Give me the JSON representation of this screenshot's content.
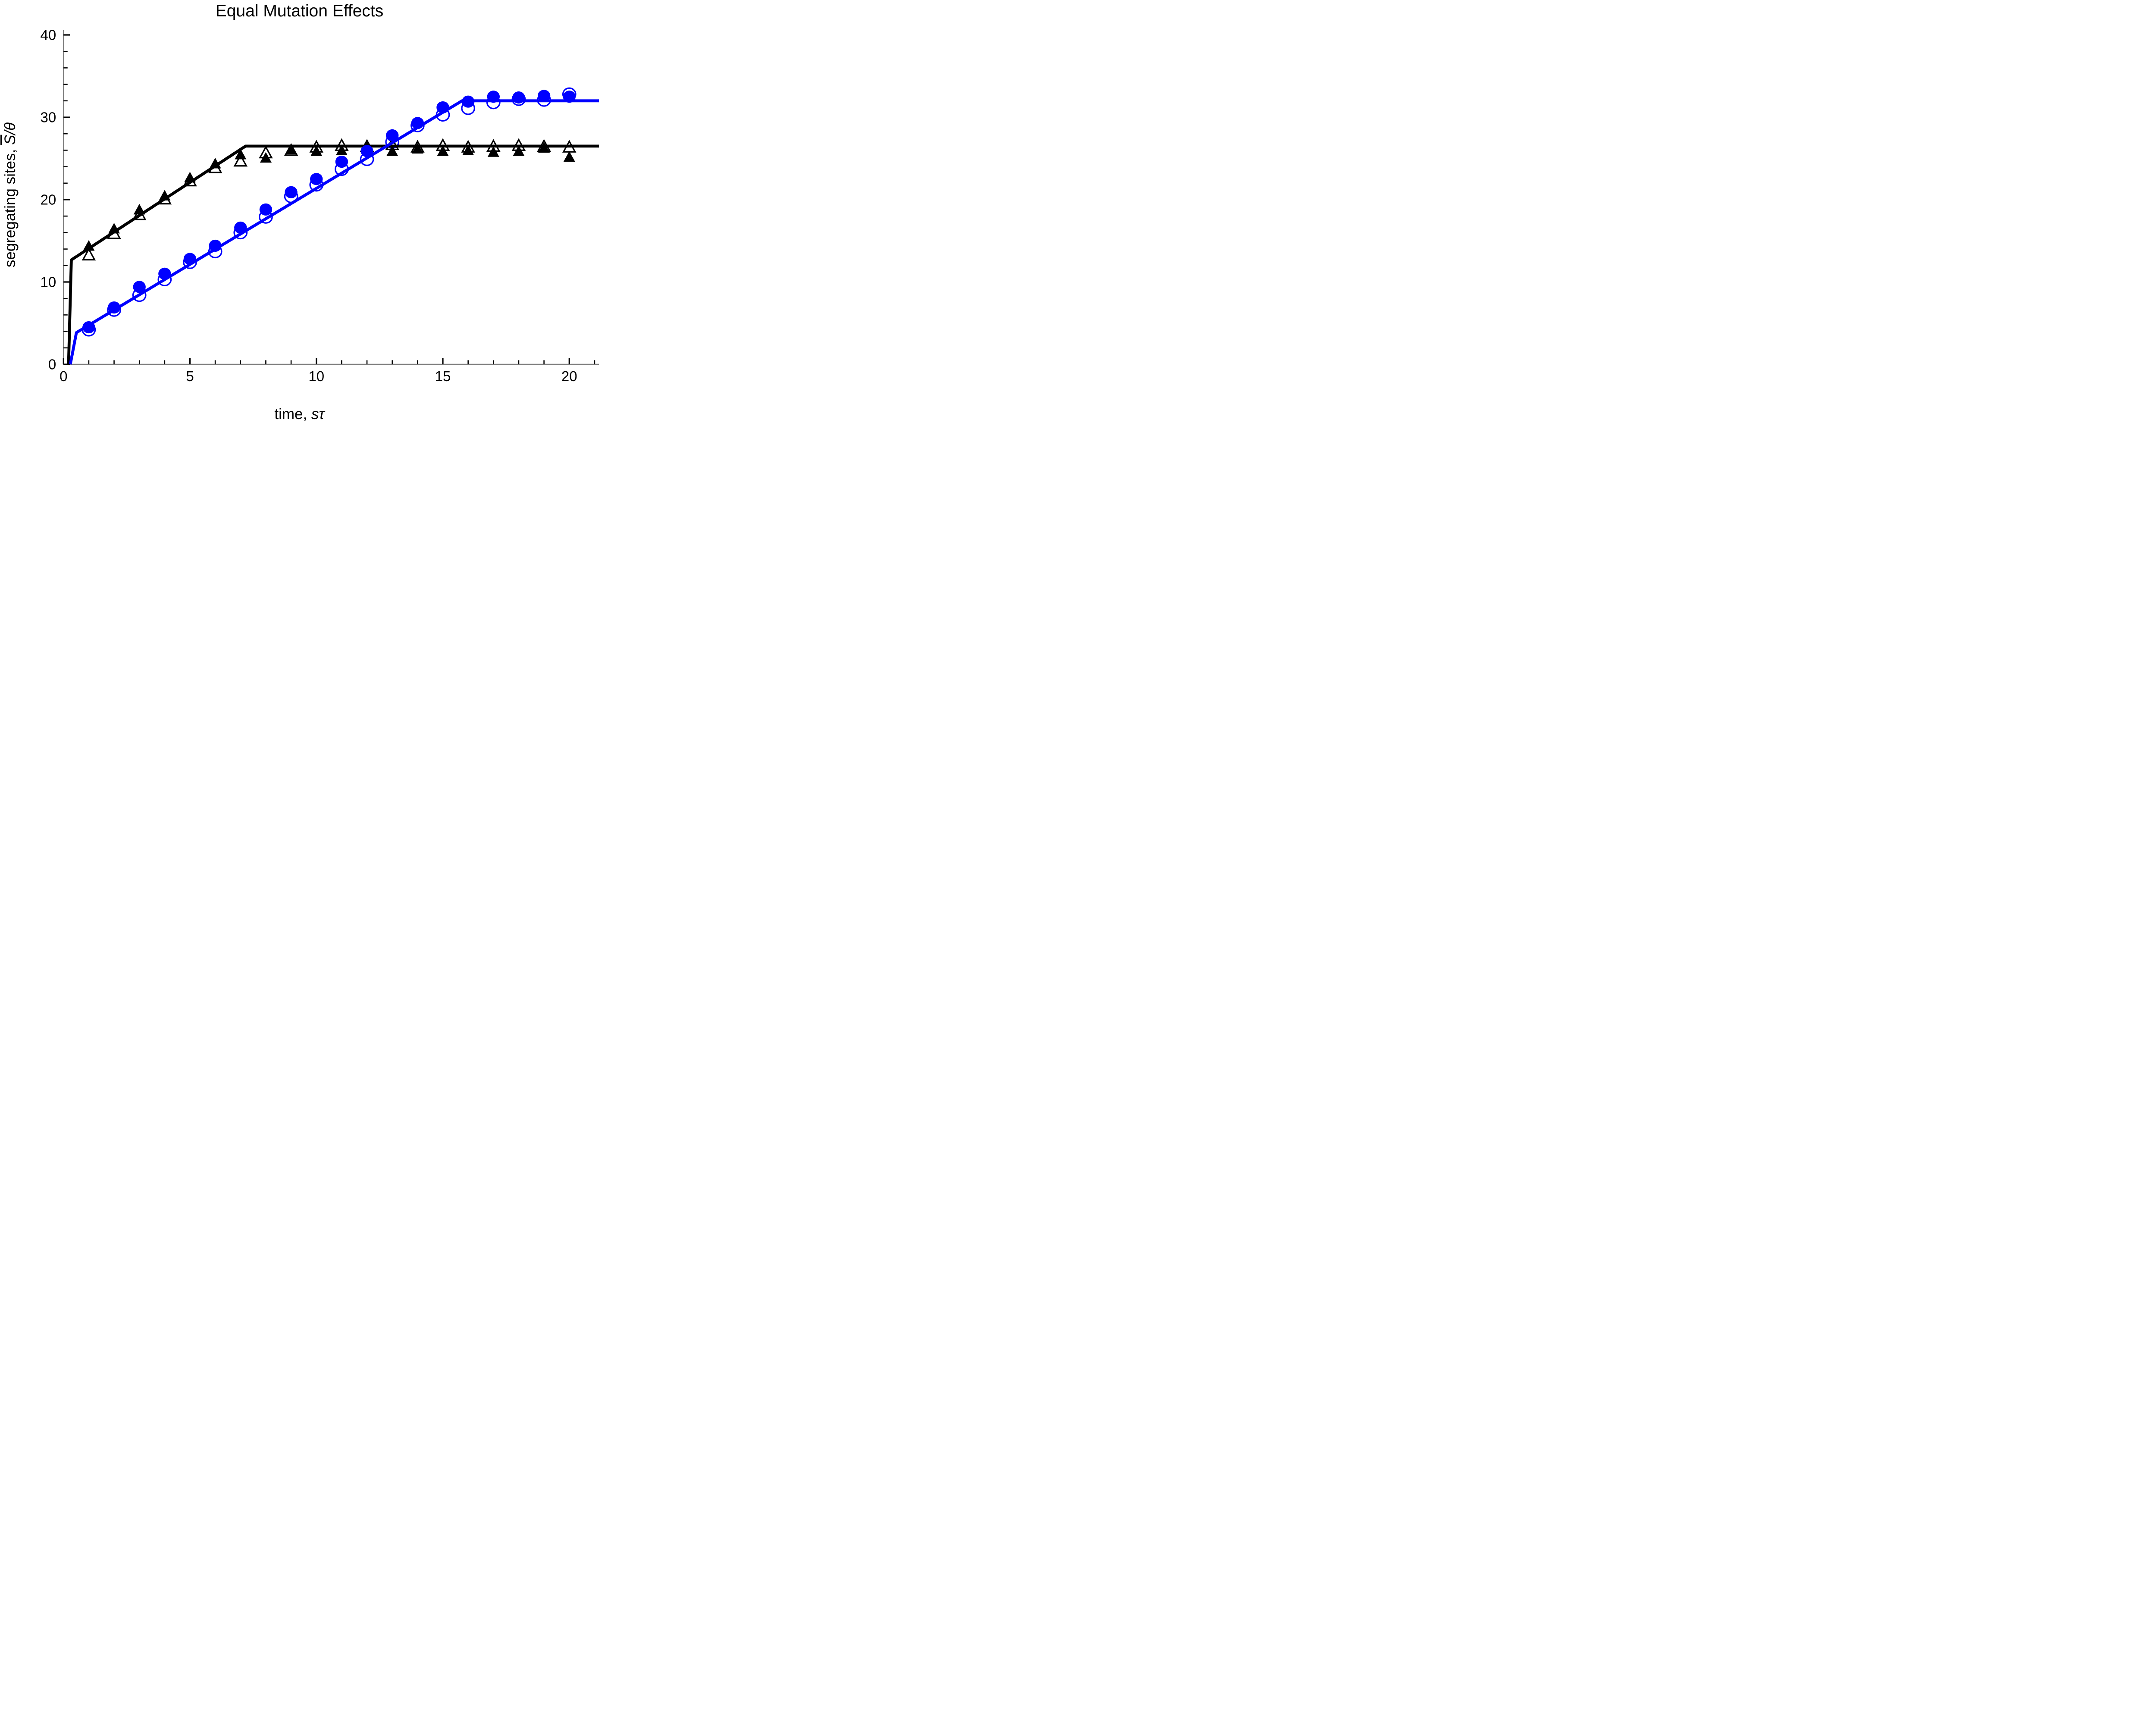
{
  "chart_data": {
    "type": "line+scatter",
    "title": "Equal Mutation Effects",
    "xlabel": {
      "prefix": "time, ",
      "math": "sτ"
    },
    "ylabel": {
      "prefix": "segregating sites, ",
      "s_overline": "S",
      "rest": "/θ"
    },
    "xlim": [
      0,
      21.2
    ],
    "ylim": [
      0,
      40.6
    ],
    "grid": false,
    "legend": false,
    "axis_color": "#7F7F7F",
    "tick_color": "#000000",
    "colors": {
      "black_series": "#000000",
      "blue_series": "#0000FF"
    },
    "x_major_ticks": [
      0,
      5,
      10,
      15,
      20
    ],
    "x_minor_ticks": [
      1,
      2,
      3,
      4,
      6,
      7,
      8,
      9,
      11,
      12,
      13,
      14,
      16,
      17,
      18,
      19,
      21
    ],
    "y_major_ticks": [
      0,
      10,
      20,
      30,
      40
    ],
    "y_minor_ticks": [
      2,
      4,
      6,
      8,
      12,
      14,
      16,
      18,
      22,
      24,
      26,
      28,
      32,
      34,
      36,
      38
    ],
    "series": [
      {
        "name": "theory-line-black",
        "type": "line",
        "color": "#000000",
        "points": [
          [
            0.2,
            0
          ],
          [
            0.31,
            12.68
          ],
          [
            7.2,
            26.5
          ],
          [
            21.2,
            26.5
          ]
        ]
      },
      {
        "name": "theory-line-blue",
        "type": "line",
        "color": "#0000FF",
        "points": [
          [
            0.27,
            0
          ],
          [
            0.51,
            3.85
          ],
          [
            15.76,
            32.0
          ],
          [
            21.2,
            32.0
          ]
        ]
      },
      {
        "name": "sim-triangles-filled",
        "type": "scatter",
        "marker": "triangle-filled",
        "color": "#000000",
        "x": [
          1,
          2,
          3,
          4,
          5,
          6,
          7,
          8,
          9,
          10,
          11,
          12,
          13,
          14,
          15,
          16,
          17,
          18,
          19,
          20
        ],
        "y": [
          14.4,
          16.5,
          18.8,
          20.5,
          22.7,
          24.4,
          25.5,
          25.1,
          26.1,
          25.9,
          26.0,
          26.6,
          25.9,
          26.2,
          25.9,
          26.0,
          25.8,
          25.9,
          26.3,
          25.2
        ]
      },
      {
        "name": "sim-triangles-open",
        "type": "scatter",
        "marker": "triangle-open",
        "color": "#000000",
        "x": [
          1,
          2,
          3,
          4,
          5,
          6,
          7,
          8,
          9,
          10,
          11,
          12,
          13,
          14,
          15,
          16,
          17,
          18,
          19,
          20
        ],
        "y": [
          13.3,
          15.9,
          18.2,
          20.1,
          22.3,
          23.9,
          24.7,
          25.7,
          26.0,
          26.4,
          26.6,
          26.5,
          26.7,
          26.4,
          26.6,
          26.4,
          26.5,
          26.6,
          26.5,
          26.4
        ]
      },
      {
        "name": "sim-circles-filled",
        "type": "scatter",
        "marker": "circle-filled",
        "color": "#0000FF",
        "x": [
          1,
          2,
          3,
          4,
          5,
          6,
          7,
          8,
          9,
          10,
          11,
          12,
          13,
          14,
          15,
          16,
          17,
          18,
          19,
          20
        ],
        "y": [
          4.5,
          6.9,
          9.4,
          11.0,
          12.8,
          14.4,
          16.6,
          18.8,
          20.9,
          22.5,
          24.6,
          25.9,
          27.8,
          29.3,
          31.2,
          31.9,
          32.5,
          32.4,
          32.6,
          32.5
        ]
      },
      {
        "name": "sim-circles-open",
        "type": "scatter",
        "marker": "circle-open",
        "color": "#0000FF",
        "x": [
          1,
          2,
          3,
          4,
          5,
          6,
          7,
          8,
          9,
          10,
          11,
          12,
          13,
          14,
          15,
          16,
          17,
          18,
          19,
          20
        ],
        "y": [
          4.2,
          6.6,
          8.4,
          10.3,
          12.4,
          13.7,
          16.0,
          17.9,
          20.4,
          21.8,
          23.7,
          24.9,
          27.0,
          29.0,
          30.3,
          31.1,
          31.8,
          32.2,
          32.1,
          32.8
        ]
      }
    ]
  }
}
